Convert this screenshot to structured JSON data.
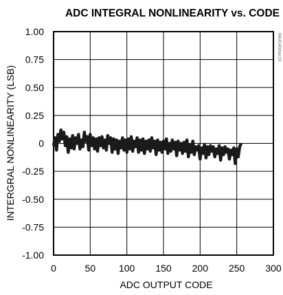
{
  "chart_data": {
    "type": "line",
    "title": "ADC INTEGRAL NONLINEARITY vs. CODE",
    "xlabel": "ADC OUTPUT CODE",
    "ylabel": "INTERGRAL NONLINEARITY (LSB)",
    "side_label": "MAX1402toc13",
    "xlim": [
      0,
      300
    ],
    "ylim": [
      -1.0,
      1.0
    ],
    "x_ticks": [
      0,
      50,
      100,
      150,
      200,
      250,
      300
    ],
    "x_tick_labels": [
      "0",
      "50",
      "100",
      "150",
      "200",
      "250",
      "300"
    ],
    "y_ticks": [
      1.0,
      0.75,
      0.5,
      0.25,
      0,
      -0.25,
      -0.5,
      -0.75,
      -1.0
    ],
    "y_tick_labels": [
      "1.00",
      "0.75",
      "0.50",
      "0.25",
      "0",
      "-0.25",
      "-0.50",
      "-0.75",
      "-1.00"
    ],
    "grid": true,
    "series": [
      {
        "x": [
          0,
          2,
          4,
          6,
          8,
          10,
          12,
          14,
          16,
          18,
          20,
          22,
          24,
          26,
          28,
          30,
          32,
          34,
          36,
          38,
          40,
          42,
          44,
          46,
          48,
          50,
          52,
          54,
          56,
          58,
          60,
          62,
          64,
          66,
          68,
          70,
          72,
          74,
          76,
          78,
          80,
          82,
          84,
          86,
          88,
          90,
          92,
          94,
          96,
          98,
          100,
          102,
          104,
          106,
          108,
          110,
          112,
          114,
          116,
          118,
          120,
          122,
          124,
          126,
          128,
          130,
          132,
          134,
          136,
          138,
          140,
          142,
          144,
          146,
          148,
          150,
          152,
          154,
          156,
          158,
          160,
          162,
          164,
          166,
          168,
          170,
          172,
          174,
          176,
          178,
          180,
          182,
          184,
          186,
          188,
          190,
          192,
          194,
          196,
          198,
          200,
          202,
          204,
          206,
          208,
          210,
          212,
          214,
          216,
          218,
          220,
          222,
          224,
          226,
          228,
          230,
          232,
          234,
          236,
          238,
          240,
          242,
          244,
          246,
          248,
          250,
          252,
          254,
          256
        ],
        "y": [
          -0.02,
          0.05,
          -0.06,
          0.08,
          0.02,
          0.12,
          0.04,
          0.1,
          -0.02,
          0.06,
          -0.08,
          0.04,
          -0.04,
          0.07,
          -0.05,
          0.05,
          0.0,
          0.08,
          -0.05,
          0.03,
          -0.03,
          0.1,
          0.02,
          0.06,
          -0.06,
          0.08,
          -0.02,
          0.05,
          -0.05,
          0.04,
          -0.07,
          0.05,
          -0.02,
          0.06,
          -0.04,
          0.03,
          -0.06,
          0.07,
          0.0,
          0.05,
          -0.08,
          0.04,
          -0.05,
          0.03,
          -0.09,
          0.02,
          -0.04,
          0.05,
          -0.06,
          0.03,
          -0.08,
          0.04,
          -0.05,
          0.06,
          -0.07,
          0.02,
          -0.03,
          0.05,
          -0.08,
          0.03,
          -0.06,
          0.04,
          -0.09,
          0.02,
          -0.05,
          0.03,
          -0.07,
          0.05,
          -0.04,
          0.02,
          -0.1,
          0.03,
          -0.06,
          0.01,
          -0.08,
          0.02,
          -0.05,
          0.04,
          -0.09,
          0.0,
          -0.07,
          0.03,
          -0.05,
          0.01,
          -0.11,
          0.02,
          -0.06,
          0.0,
          -0.09,
          0.01,
          -0.07,
          0.03,
          -0.12,
          -0.01,
          -0.08,
          0.02,
          -0.1,
          -0.03,
          -0.06,
          -0.02,
          -0.14,
          -0.04,
          -0.09,
          -0.01,
          -0.13,
          -0.03,
          -0.1,
          -0.02,
          -0.07,
          -0.03,
          -0.12,
          -0.05,
          -0.09,
          -0.02,
          -0.15,
          -0.04,
          -0.1,
          -0.03,
          -0.08,
          -0.05,
          -0.14,
          -0.06,
          -0.1,
          -0.04,
          -0.18,
          -0.05,
          -0.12,
          -0.03,
          0.0
        ]
      }
    ]
  }
}
